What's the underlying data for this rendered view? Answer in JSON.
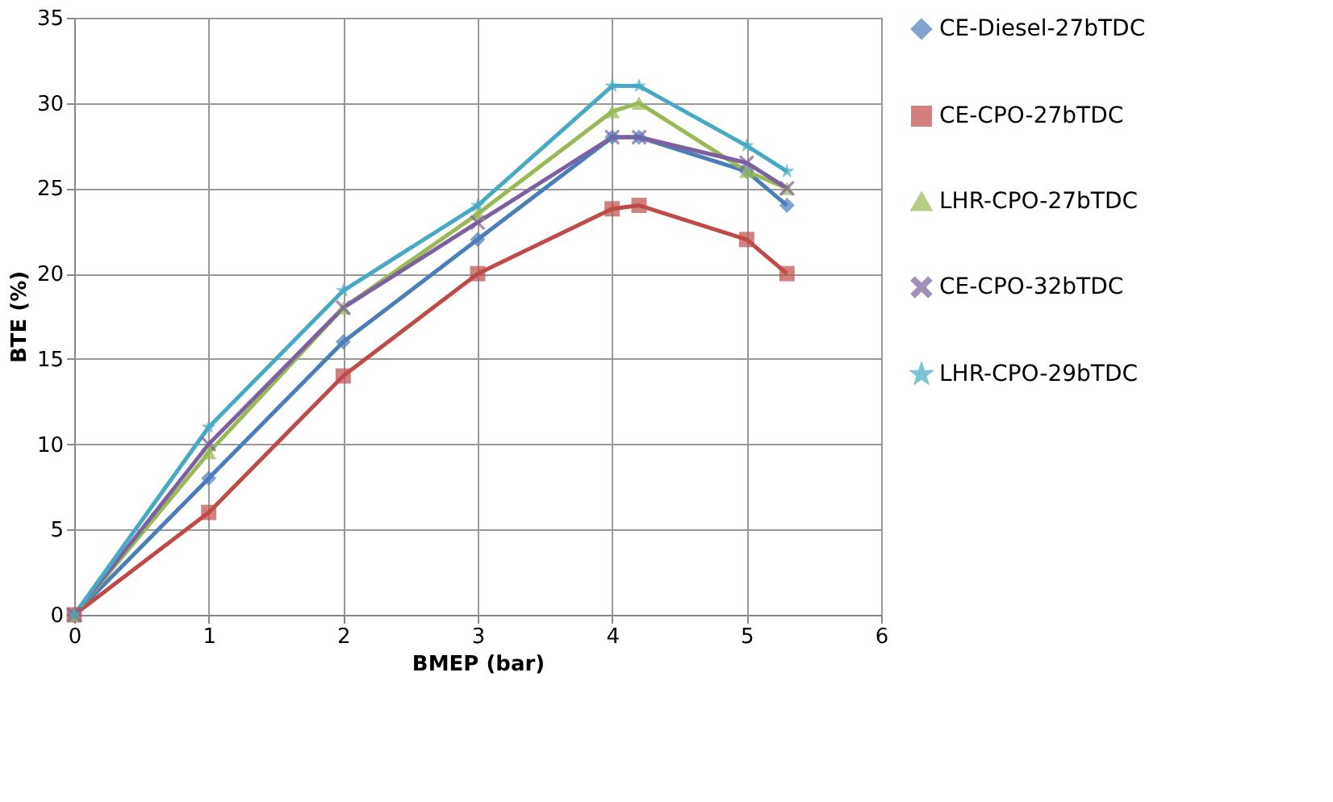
{
  "chart_data": {
    "type": "line",
    "xlabel": "BMEP (bar)",
    "ylabel": "BTE (%)",
    "xlim": [
      0,
      6
    ],
    "xticks": [
      0,
      1,
      2,
      3,
      4,
      5,
      6
    ],
    "ylim": [
      0,
      35
    ],
    "yticks": [
      0,
      5,
      10,
      15,
      20,
      25,
      30,
      35
    ],
    "grid": true,
    "legend": "right",
    "line_style": "solid",
    "x": [
      0,
      1,
      2,
      3,
      4,
      4.2,
      5,
      5.3
    ],
    "series": [
      {
        "name": "CE-Diesel-27bTDC",
        "color": "#4a7ebb",
        "marker": "diamond",
        "values": [
          0,
          8,
          16,
          22,
          28,
          28,
          26,
          24
        ]
      },
      {
        "name": "CE-CPO-27bTDC",
        "color": "#be4b48",
        "marker": "square",
        "values": [
          0,
          6,
          14,
          20,
          23.8,
          24,
          22,
          20
        ]
      },
      {
        "name": "LHR-CPO-27bTDC",
        "color": "#98b954",
        "marker": "triangle",
        "values": [
          0,
          9.5,
          18,
          23.5,
          29.5,
          30,
          26,
          25
        ]
      },
      {
        "name": "CE-CPO-32bTDC",
        "color": "#7d60a0",
        "marker": "cross",
        "values": [
          0,
          10,
          18,
          23,
          28,
          28,
          26.5,
          25
        ]
      },
      {
        "name": "LHR-CPO-29bTDC",
        "color": "#46aac5",
        "marker": "star",
        "values": [
          0,
          11,
          19,
          24,
          31,
          31,
          27.5,
          26
        ]
      }
    ]
  }
}
